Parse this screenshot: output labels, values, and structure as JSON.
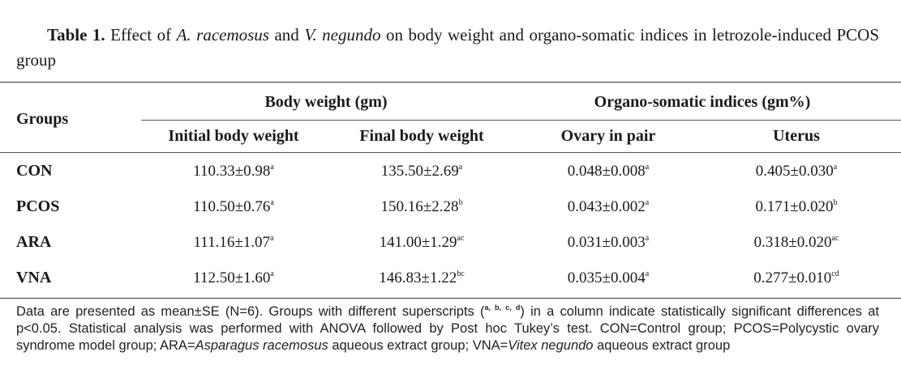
{
  "caption": {
    "label": "Table 1.",
    "part1": " Effect of ",
    "species1": "A. racemosus",
    "part2": " and ",
    "species2": "V. negundo",
    "part3": " on body weight and organo-somatic indices in letrozole-induced PCOS group"
  },
  "table": {
    "groups_header": "Groups",
    "body_weight_header": "Body weight (gm)",
    "indices_header": "Organo-somatic indices (gm%)",
    "columns": [
      "Initial body weight",
      "Final body weight",
      "Ovary in pair",
      "Uterus"
    ],
    "rows": [
      {
        "group": "CON",
        "cells": [
          {
            "v": "110.33±0.98",
            "s": "a"
          },
          {
            "v": "135.50±2.69",
            "s": "a"
          },
          {
            "v": "0.048±0.008",
            "s": "a"
          },
          {
            "v": "0.405±0.030",
            "s": "a"
          }
        ]
      },
      {
        "group": "PCOS",
        "cells": [
          {
            "v": "110.50±0.76",
            "s": "a"
          },
          {
            "v": "150.16±2.28",
            "s": "b"
          },
          {
            "v": "0.043±0.002",
            "s": "a"
          },
          {
            "v": "0.171±0.020",
            "s": "b"
          }
        ]
      },
      {
        "group": "ARA",
        "cells": [
          {
            "v": "111.16±1.07",
            "s": "a"
          },
          {
            "v": "141.00±1.29",
            "s": "ac"
          },
          {
            "v": "0.031±0.003",
            "s": "a"
          },
          {
            "v": "0.318±0.020",
            "s": "ac"
          }
        ]
      },
      {
        "group": "VNA",
        "cells": [
          {
            "v": "112.50±1.60",
            "s": "a"
          },
          {
            "v": "146.83±1.22",
            "s": "bc"
          },
          {
            "v": "0.035±0.004",
            "s": "a"
          },
          {
            "v": "0.277±0.010",
            "s": "cd"
          }
        ]
      }
    ]
  },
  "footnote": {
    "t1": "Data are presented as mean±SE (N=6). Groups with different superscripts (",
    "sup": "a, b, c, d",
    "t2": ") in a column indicate statistically significant differences at p<0.05. Statistical analysis was performed with ANOVA followed by Post hoc Tukey’s test. CON=Control group; PCOS=Polycystic ovary syndrome model group; ARA=",
    "i1": "Asparagus racemosus",
    "t3": " aqueous extract group; VNA=",
    "i2": "Vitex negundo",
    "t4": " aqueous extract group"
  }
}
